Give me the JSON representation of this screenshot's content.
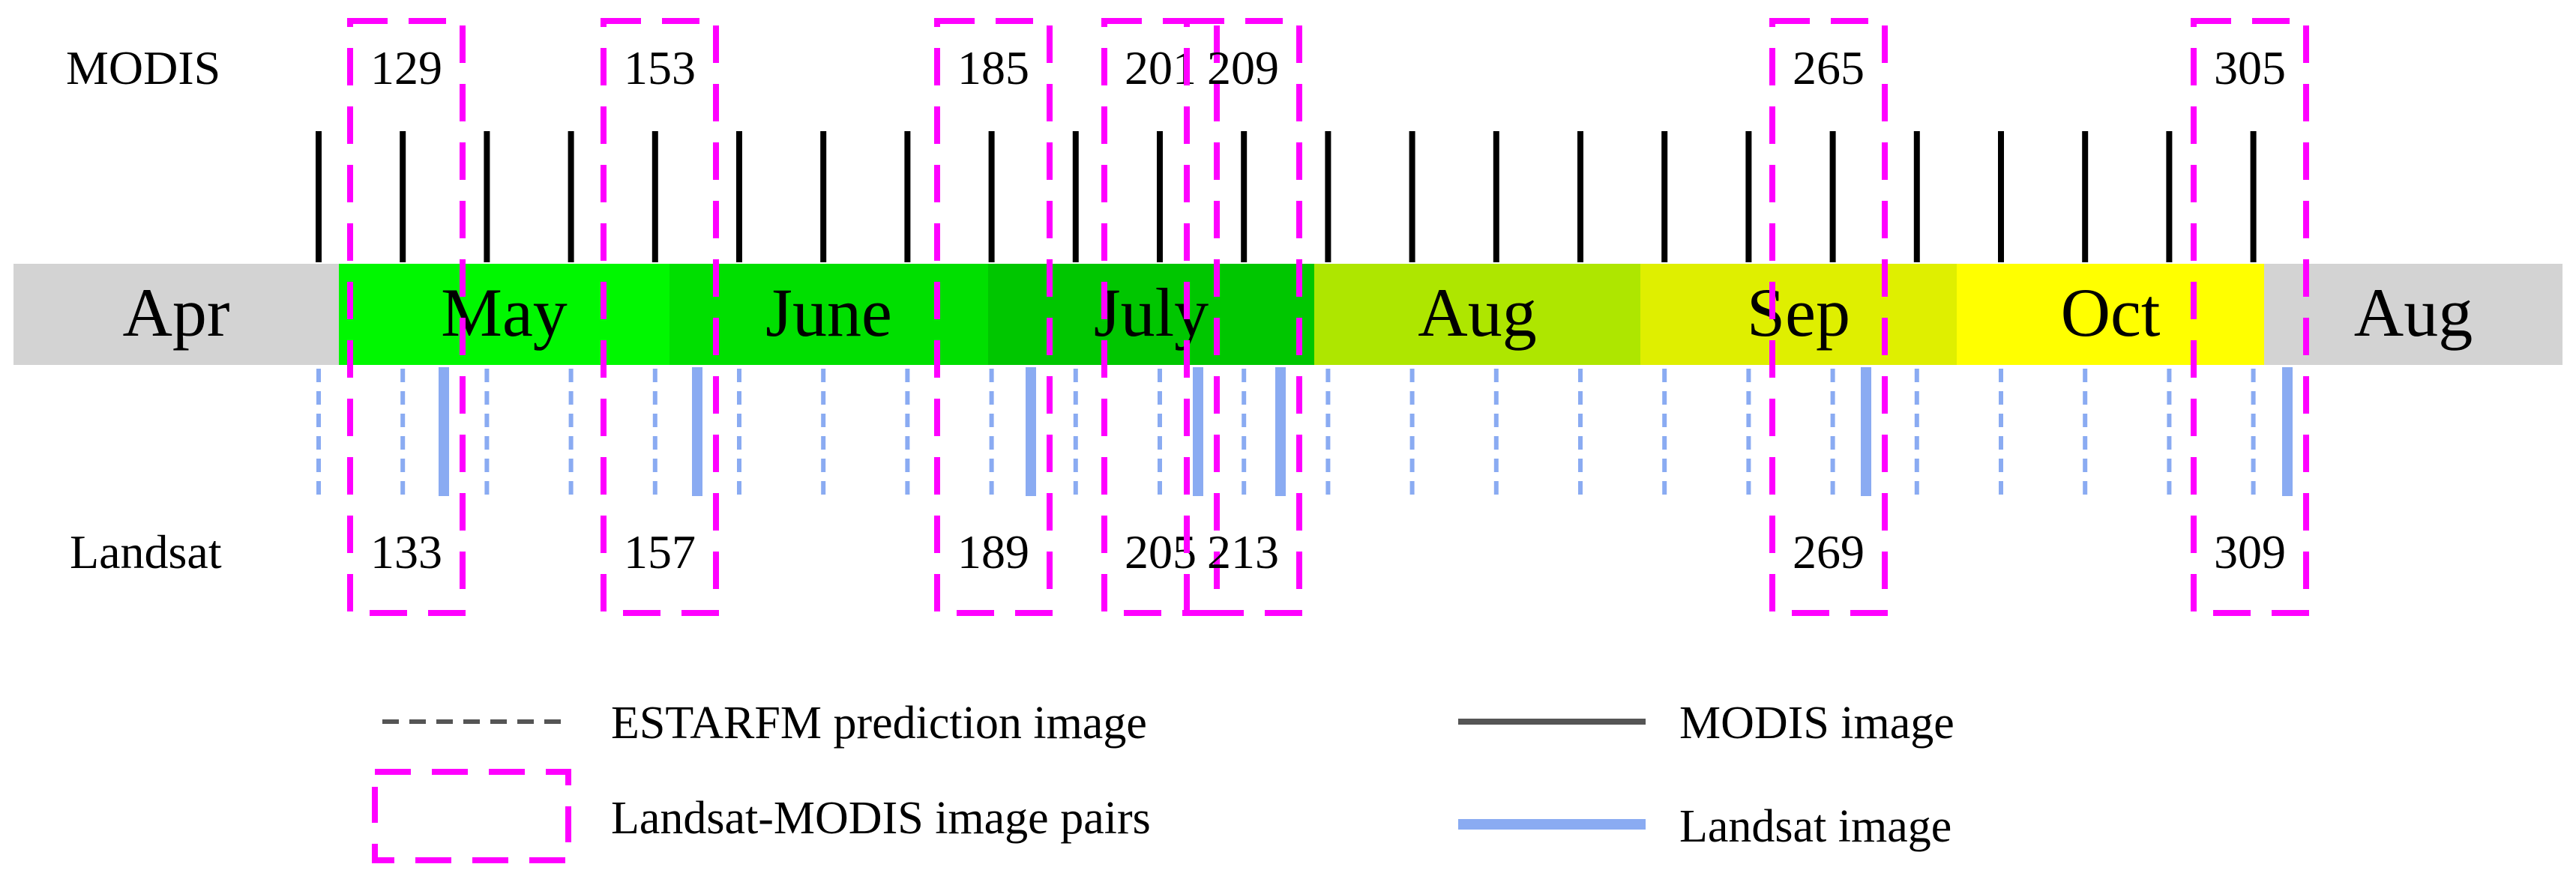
{
  "row_labels": {
    "modis": "MODIS",
    "landsat": "Landsat"
  },
  "months": [
    {
      "label": "Apr",
      "color": "#d3d3d3"
    },
    {
      "label": "May",
      "color": "#00f700"
    },
    {
      "label": "June",
      "color": "#00df00"
    },
    {
      "label": "July",
      "color": "#00c600"
    },
    {
      "label": "Aug",
      "color": "#aee600"
    },
    {
      "label": "Sep",
      "color": "#dfef00"
    },
    {
      "label": "Oct",
      "color": "#ffff00"
    },
    {
      "label": "Aug",
      "color": "#d3d3d3"
    }
  ],
  "modis_images_count": 24,
  "prediction_images_count": 24,
  "pairs": [
    {
      "modis": "129",
      "landsat": "133"
    },
    {
      "modis": "153",
      "landsat": "157"
    },
    {
      "modis": "185",
      "landsat": "189"
    },
    {
      "modis": "201",
      "landsat": "205"
    },
    {
      "modis": "209",
      "landsat": "213"
    },
    {
      "modis": "265",
      "landsat": "269"
    },
    {
      "modis": "305",
      "landsat": "309"
    }
  ],
  "legend": {
    "prediction": "ESTARFM prediction image",
    "pairs": "Landsat-MODIS image pairs",
    "modis": "MODIS image",
    "landsat": "Landsat image"
  },
  "colors": {
    "modis_line": "#000000",
    "landsat_line": "#8aabf2",
    "pair_box": "#ff00ff",
    "legend_dash": "#555555",
    "legend_modis": "#555555"
  }
}
